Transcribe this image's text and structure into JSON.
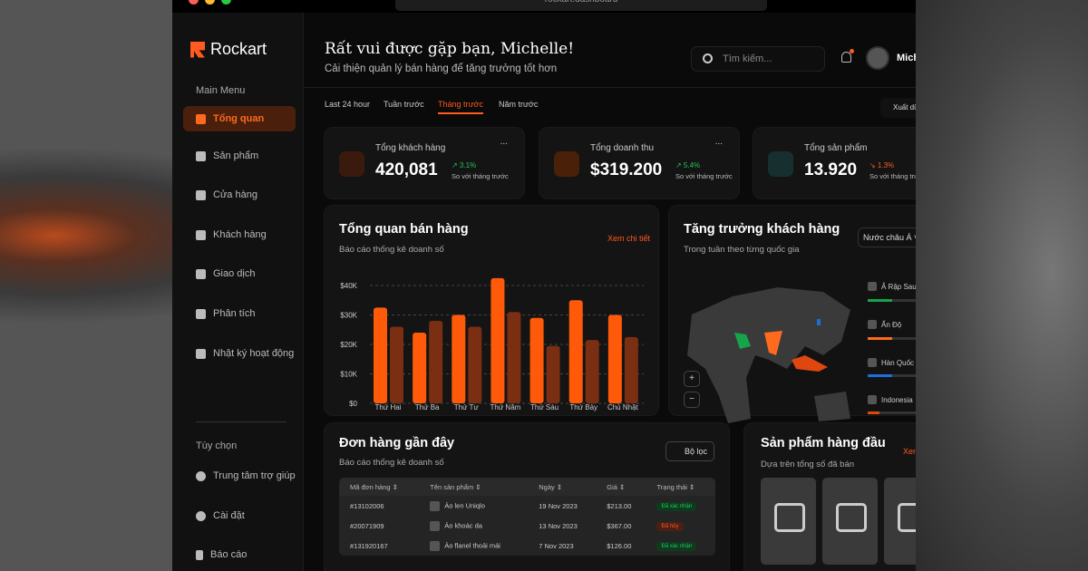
{
  "browser": {
    "url": "rockart.dashboard"
  },
  "brand": "Rockart",
  "sidebar": {
    "main_menu": "Main Menu",
    "items": [
      {
        "label": "Tổng quan",
        "active": true
      },
      {
        "label": "Sản phẩm"
      },
      {
        "label": "Cửa hàng"
      },
      {
        "label": "Khách hàng"
      },
      {
        "label": "Giao dịch"
      },
      {
        "label": "Phân tích"
      },
      {
        "label": "Nhật ký hoạt động"
      }
    ],
    "options": "Tùy chọn",
    "option_items": [
      {
        "label": "Trung tâm trợ giúp"
      },
      {
        "label": "Cài đặt"
      },
      {
        "label": "Báo cáo"
      }
    ]
  },
  "header": {
    "greeting": "Rất vui được gặp bạn, Michelle!",
    "subtitle": "Cải thiện quản lý bán hàng để tăng trưởng tốt hơn",
    "search_placeholder": "Tìm kiếm...",
    "user": "Mich"
  },
  "tabs": [
    {
      "label": "Last 24 hour"
    },
    {
      "label": "Tuần trước"
    },
    {
      "label": "Tháng trước",
      "active": true
    },
    {
      "label": "Năm trước"
    }
  ],
  "export_label": "Xuất dữ",
  "stats": [
    {
      "label": "Tổng khách hàng",
      "value": "420,081",
      "change": "↗ 3.1%",
      "trend": "up",
      "compare": "So với tháng trước",
      "color": "#3a1a0c"
    },
    {
      "label": "Tổng doanh thu",
      "value": "$319.200",
      "change": "↗ 5.4%",
      "trend": "up",
      "compare": "So với tháng trước",
      "color": "#4a2008"
    },
    {
      "label": "Tổng sản phẩm",
      "value": "13.920",
      "change": "↘ 1.3%",
      "trend": "down",
      "compare": "So với tháng trước",
      "color": "#17302f"
    }
  ],
  "more": "...",
  "colors": {
    "accent": "#ff5a1f",
    "up": "#22c55e",
    "down": "#ff5a1f",
    "bar_primary": "#ff5a0a",
    "bar_secondary": "#7a2e12"
  },
  "sales": {
    "title": "Tổng quan bán hàng",
    "subtitle": "Báo cáo thống kê doanh số",
    "link": "Xem chi tiết"
  },
  "chart_data": {
    "type": "bar",
    "categories": [
      "Thứ Hai",
      "Thứ Ba",
      "Thứ Tư",
      "Thứ Năm",
      "Thứ Sáu",
      "Thứ Bảy",
      "Chủ Nhật"
    ],
    "series": [
      {
        "values": [
          32500,
          24000,
          30000,
          42500,
          29000,
          35000,
          30000
        ]
      },
      {
        "values": [
          26000,
          28000,
          26000,
          31000,
          19500,
          21500,
          22500
        ]
      }
    ],
    "yticks": [
      "$0",
      "$10K",
      "$20K",
      "$30K",
      "$40K"
    ],
    "ylim": [
      0,
      40000
    ],
    "grid": true
  },
  "growth": {
    "title": "Tăng trưởng khách hàng",
    "subtitle": "Trong tuần theo từng quốc gia",
    "dropdown": "Nước châu Á",
    "zoom_in": "+",
    "zoom_out": "−",
    "countries": [
      {
        "name": "Ả Rập Saudi",
        "progress": 0.45,
        "color": "#16a34a"
      },
      {
        "name": "Ấn Độ",
        "progress": 0.45,
        "color": "#ff6a1f"
      },
      {
        "name": "Hàn Quốc",
        "progress": 0.45,
        "color": "#1d6fd8"
      },
      {
        "name": "Indonesia",
        "progress": 0.22,
        "color": "#e0460f"
      }
    ]
  },
  "orders": {
    "title": "Đơn hàng gần đây",
    "subtitle": "Báo cáo thống kê doanh số",
    "filter": "Bộ lọc",
    "columns": [
      "Mã đơn hàng ⇕",
      "Tên sản phẩm ⇕",
      "Ngày ⇕",
      "Giá ⇕",
      "Trạng thái ⇕"
    ],
    "rows": [
      {
        "id": "#13102006",
        "product": "Áo len Uniqlo",
        "date": "19 Nov 2023",
        "price": "$213.00",
        "status": "Đã xác nhận",
        "ok": true
      },
      {
        "id": "#20071909",
        "product": "Áo khoác da",
        "date": "13 Nov 2023",
        "price": "$367.00",
        "status": "Đã hủy",
        "ok": false
      },
      {
        "id": "#131920167",
        "product": "Áo flanel thoải mái",
        "date": "7 Nov 2023",
        "price": "$126.00",
        "status": "Đã xác nhận",
        "ok": true
      }
    ]
  },
  "top_products": {
    "title": "Sản phẩm hàng đầu",
    "subtitle": "Dựa trên tổng số đã bán",
    "link": "Xem"
  }
}
